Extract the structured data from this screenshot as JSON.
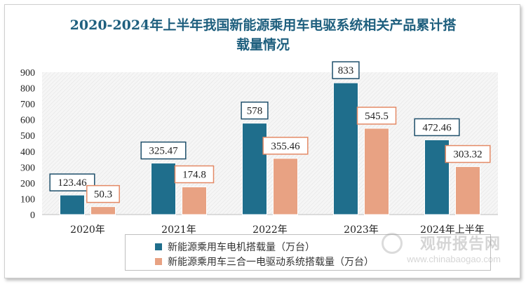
{
  "chart_data": {
    "type": "bar",
    "title": "2020-2024年上半年我国新能源乘用车电驱系统相关产品累计搭载量情况",
    "title_lines": [
      "2020-2024年上半年我国新能源乘用车电驱系统相关产品累计搭",
      "载量情况"
    ],
    "categories": [
      "2020年",
      "2021年",
      "2022年",
      "2023年",
      "2024年上半年"
    ],
    "series": [
      {
        "name": "新能源乘用车电机搭载量（万台）",
        "color": "#1f6e8c",
        "label_border": "#1e4f6b",
        "values": [
          123.46,
          325.47,
          578,
          833,
          472.46
        ],
        "labels": [
          "123.46",
          "325.47",
          "578",
          "833",
          "472.46"
        ]
      },
      {
        "name": "新能源乘用车三合一电驱动系统搭载量（万台）",
        "color": "#e8a283",
        "label_border": "#e48a66",
        "values": [
          50.3,
          174.8,
          355.46,
          545.5,
          303.32
        ],
        "labels": [
          "50.3",
          "174.8",
          "355.46",
          "545.5",
          "303.32"
        ]
      }
    ],
    "yticks": [
      "0",
      "100",
      "200",
      "300",
      "400",
      "500",
      "600",
      "700",
      "800",
      "900"
    ],
    "ylim": [
      0,
      900
    ],
    "grid": false,
    "legend_position": "bottom"
  },
  "watermark": {
    "cn": "观研报告网",
    "en": "www.chinabaogao.com"
  }
}
